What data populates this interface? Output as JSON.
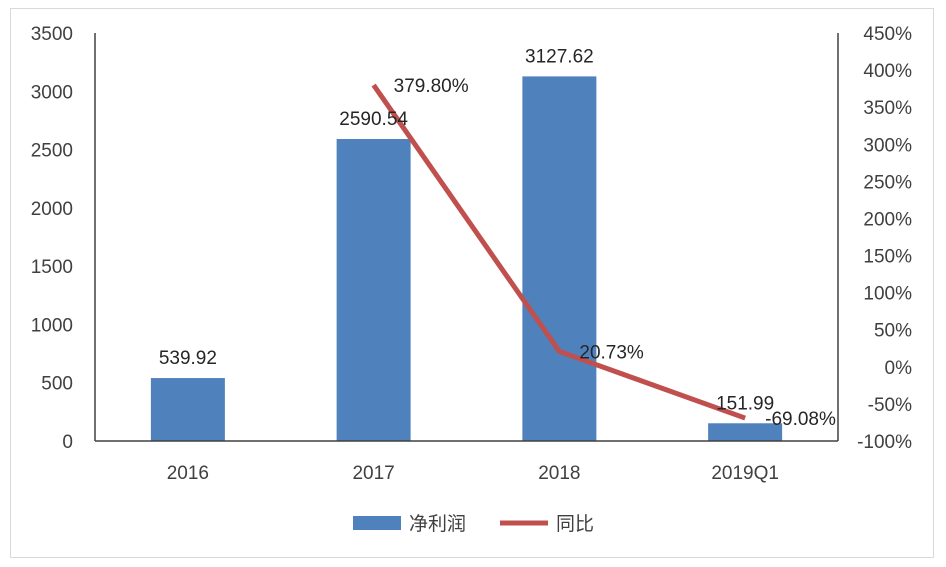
{
  "chart_data": {
    "type": "bar",
    "categories": [
      "2016",
      "2017",
      "2018",
      "2019Q1"
    ],
    "series": [
      {
        "name": "净利润",
        "type": "bar",
        "axis": "left",
        "values": [
          539.92,
          2590.54,
          3127.62,
          151.99
        ],
        "labels": [
          "539.92",
          "2590.54",
          "3127.62",
          "151.99"
        ],
        "color": "#4f81bd"
      },
      {
        "name": "同比",
        "type": "line",
        "axis": "right",
        "values": [
          null,
          379.8,
          20.73,
          -69.08
        ],
        "labels": [
          "",
          "379.80%",
          "20.73%",
          "-69.08%"
        ],
        "color": "#c0504d"
      }
    ],
    "y_left": {
      "ylim": [
        0,
        3500
      ],
      "ticks": [
        "0",
        "500",
        "1000",
        "1500",
        "2000",
        "2500",
        "3000",
        "3500"
      ]
    },
    "y_right": {
      "ylim": [
        -100,
        450
      ],
      "ticks": [
        "-100%",
        "-50%",
        "0%",
        "50%",
        "100%",
        "150%",
        "200%",
        "250%",
        "300%",
        "350%",
        "400%",
        "450%"
      ]
    },
    "legend": {
      "position": "bottom",
      "entries": [
        "净利润",
        "同比"
      ]
    },
    "grid": false
  }
}
